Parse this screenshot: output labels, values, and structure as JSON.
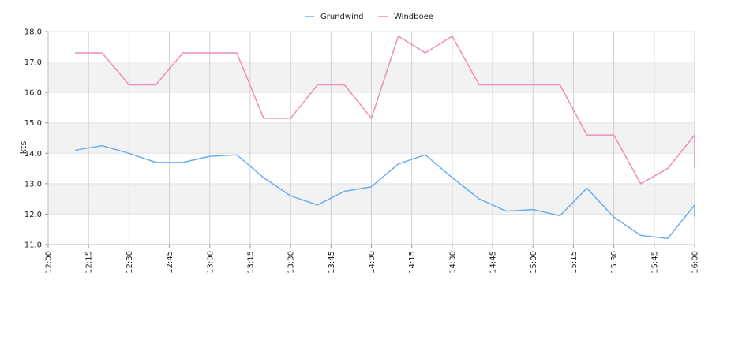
{
  "chart_data": {
    "type": "line",
    "title": "",
    "xlabel": "",
    "ylabel": "kts",
    "xlim": [
      "12:00",
      "16:00"
    ],
    "ylim": [
      11.0,
      18.0
    ],
    "x_ticks": [
      "12:00",
      "12:15",
      "12:30",
      "12:45",
      "13:00",
      "13:15",
      "13:30",
      "13:45",
      "14:00",
      "14:15",
      "14:30",
      "14:45",
      "15:00",
      "15:15",
      "15:30",
      "15:45",
      "16:00"
    ],
    "y_ticks": [
      "11.0",
      "12.0",
      "13.0",
      "14.0",
      "15.0",
      "16.0",
      "17.0",
      "18.0"
    ],
    "grid": true,
    "banded_background": true,
    "legend_position": "top-center",
    "series": [
      {
        "name": "Grundwind",
        "color": "#6aaef0",
        "points": [
          {
            "x": "12:10",
            "y": 14.1
          },
          {
            "x": "12:20",
            "y": 14.25
          },
          {
            "x": "12:30",
            "y": 14.0
          },
          {
            "x": "12:40",
            "y": 13.7
          },
          {
            "x": "12:50",
            "y": 13.7
          },
          {
            "x": "13:00",
            "y": 13.9
          },
          {
            "x": "13:10",
            "y": 13.95
          },
          {
            "x": "13:20",
            "y": 13.2
          },
          {
            "x": "13:30",
            "y": 12.6
          },
          {
            "x": "13:40",
            "y": 12.3
          },
          {
            "x": "13:50",
            "y": 12.75
          },
          {
            "x": "14:00",
            "y": 12.9
          },
          {
            "x": "14:10",
            "y": 13.65
          },
          {
            "x": "14:20",
            "y": 13.95
          },
          {
            "x": "14:30",
            "y": 13.2
          },
          {
            "x": "14:40",
            "y": 12.5
          },
          {
            "x": "14:50",
            "y": 12.1
          },
          {
            "x": "15:00",
            "y": 12.15
          },
          {
            "x": "15:10",
            "y": 11.95
          },
          {
            "x": "15:20",
            "y": 12.85
          },
          {
            "x": "15:30",
            "y": 11.9
          },
          {
            "x": "15:40",
            "y": 11.3
          },
          {
            "x": "15:50",
            "y": 11.2
          },
          {
            "x": "16:00",
            "y": 12.3
          },
          {
            "x": "16:00",
            "y": 11.9
          }
        ]
      },
      {
        "name": "Windboee",
        "color": "#ee8cbc",
        "points": [
          {
            "x": "12:10",
            "y": 17.3
          },
          {
            "x": "12:20",
            "y": 17.3
          },
          {
            "x": "12:30",
            "y": 16.25
          },
          {
            "x": "12:40",
            "y": 16.25
          },
          {
            "x": "12:50",
            "y": 17.3
          },
          {
            "x": "13:00",
            "y": 17.3
          },
          {
            "x": "13:10",
            "y": 17.3
          },
          {
            "x": "13:20",
            "y": 15.15
          },
          {
            "x": "13:30",
            "y": 15.15
          },
          {
            "x": "13:40",
            "y": 16.25
          },
          {
            "x": "13:50",
            "y": 16.25
          },
          {
            "x": "14:00",
            "y": 15.15
          },
          {
            "x": "14:10",
            "y": 17.85
          },
          {
            "x": "14:20",
            "y": 17.3
          },
          {
            "x": "14:30",
            "y": 17.85
          },
          {
            "x": "14:40",
            "y": 16.25
          },
          {
            "x": "14:50",
            "y": 16.25
          },
          {
            "x": "15:00",
            "y": 16.25
          },
          {
            "x": "15:10",
            "y": 16.25
          },
          {
            "x": "15:20",
            "y": 14.6
          },
          {
            "x": "15:30",
            "y": 14.6
          },
          {
            "x": "15:40",
            "y": 13.0
          },
          {
            "x": "15:50",
            "y": 13.5
          },
          {
            "x": "16:00",
            "y": 14.6
          },
          {
            "x": "16:00",
            "y": 13.5
          }
        ]
      }
    ]
  }
}
